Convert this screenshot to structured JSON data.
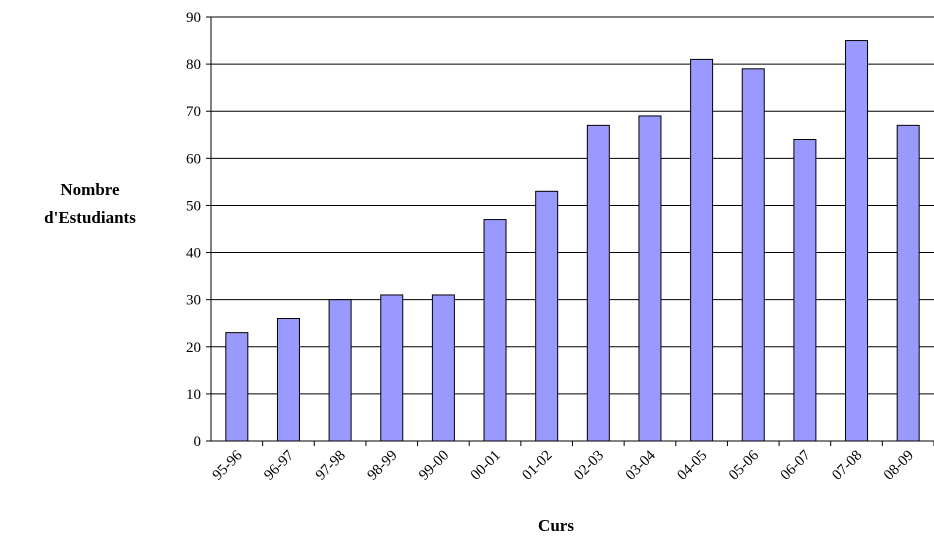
{
  "chart_data": {
    "type": "bar",
    "title": "",
    "xlabel": "Curs",
    "ylabel_lines": [
      "Nombre",
      "d'Estudiants"
    ],
    "categories": [
      "95-96",
      "96-97",
      "97-98",
      "98-99",
      "99-00",
      "00-01",
      "01-02",
      "02-03",
      "03-04",
      "04-05",
      "05-06",
      "06-07",
      "07-08",
      "08-09"
    ],
    "values": [
      23,
      26,
      30,
      31,
      31,
      47,
      53,
      67,
      69,
      81,
      79,
      64,
      85,
      67
    ],
    "ylim": [
      0,
      90
    ],
    "yticks": [
      "0",
      "10",
      "20",
      "30",
      "40",
      "50",
      "60",
      "70",
      "80",
      "90"
    ],
    "grid": true,
    "legend": "none",
    "colors": {
      "bar_fill": "#9999ff",
      "bar_stroke": "#000000",
      "grid": "#000000"
    }
  }
}
